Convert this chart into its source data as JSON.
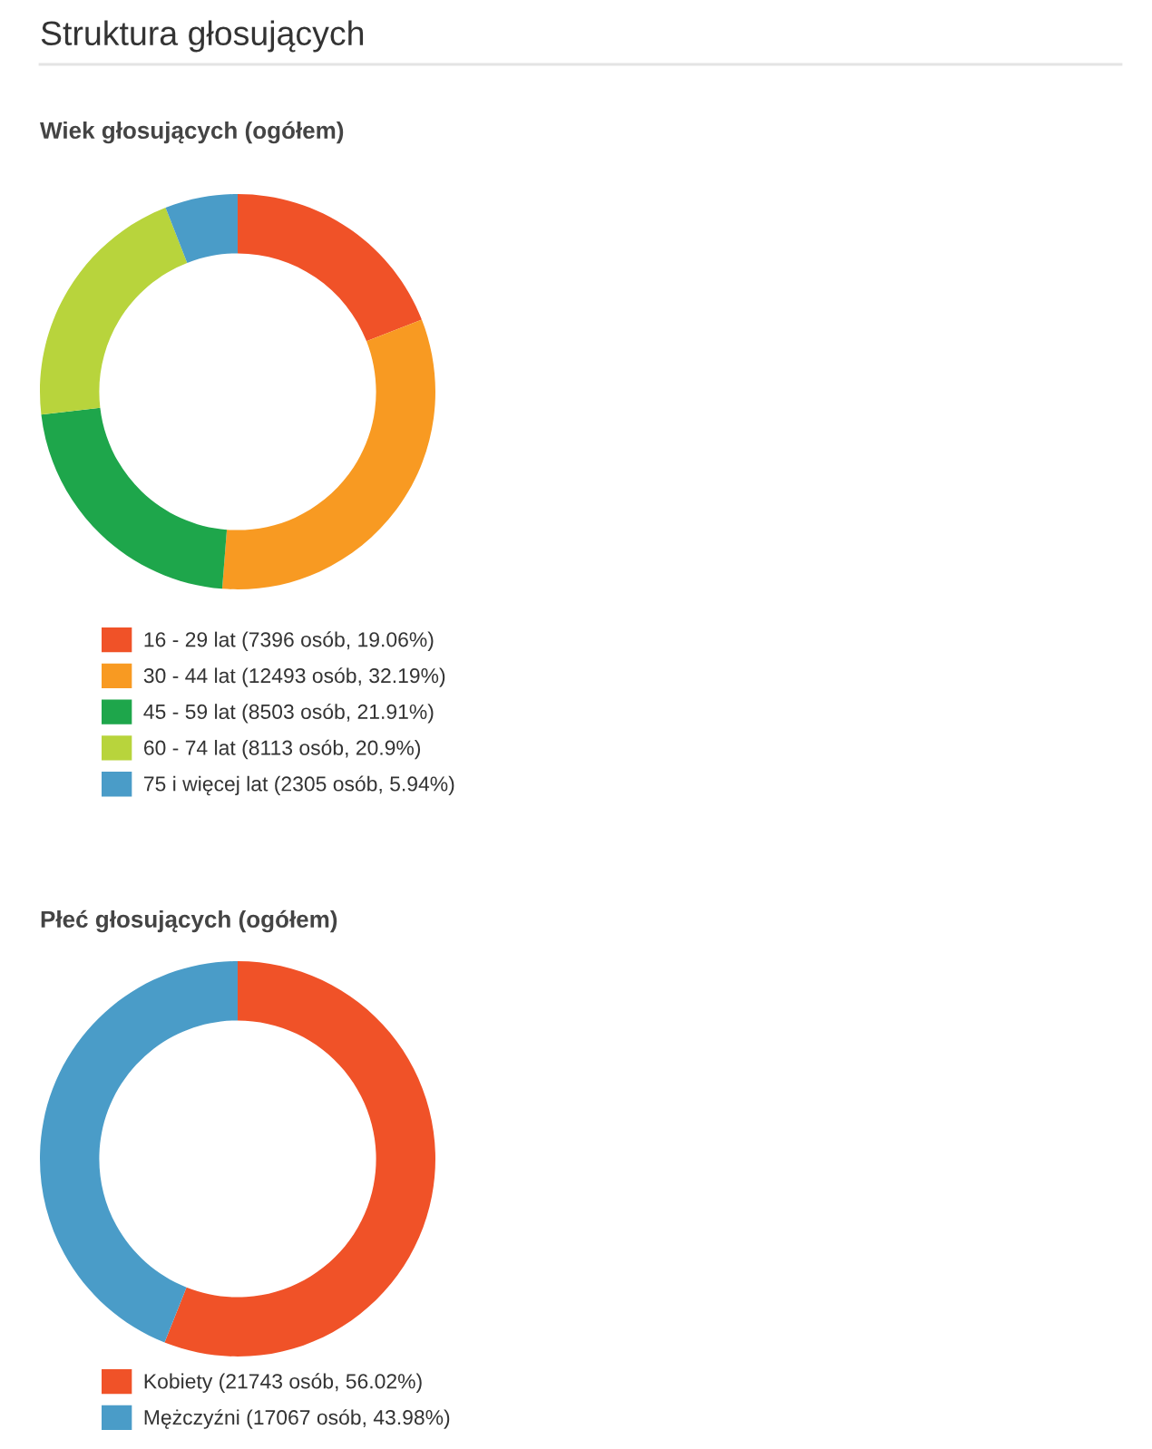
{
  "chart_data": [
    {
      "type": "donut",
      "title": "Struktura głosujących",
      "subtitle": "Wiek głosujących (ogółem)",
      "categories": [
        "16 - 29 lat",
        "30 - 44 lat",
        "45 - 59 lat",
        "60 - 74 lat",
        "75 i więcej lat"
      ],
      "values": [
        7396,
        12493,
        8503,
        8113,
        2305
      ],
      "value_labels": [
        "(7396 osób, 19.06%)",
        "(12493 osób, 32.19%)",
        "(8503 osób, 21.91%)",
        "(8113 osób, 20.9%)",
        "(2305 osób, 5.94%)"
      ],
      "colors": [
        "#f05228",
        "#f89a22",
        "#1ea64b",
        "#b8d43c",
        "#4a9cc8"
      ],
      "legend": "bottom"
    },
    {
      "type": "donut",
      "title": "Płeć głosujących (ogółem)",
      "categories": [
        "Kobiety",
        "Mężczyźni"
      ],
      "values": [
        21743,
        17067
      ],
      "value_labels": [
        "(21743 osób, 56.02%)",
        "(17067 osób, 43.98%)"
      ],
      "colors": [
        "#f05228",
        "#4a9cc8"
      ],
      "legend": "bottom"
    }
  ]
}
